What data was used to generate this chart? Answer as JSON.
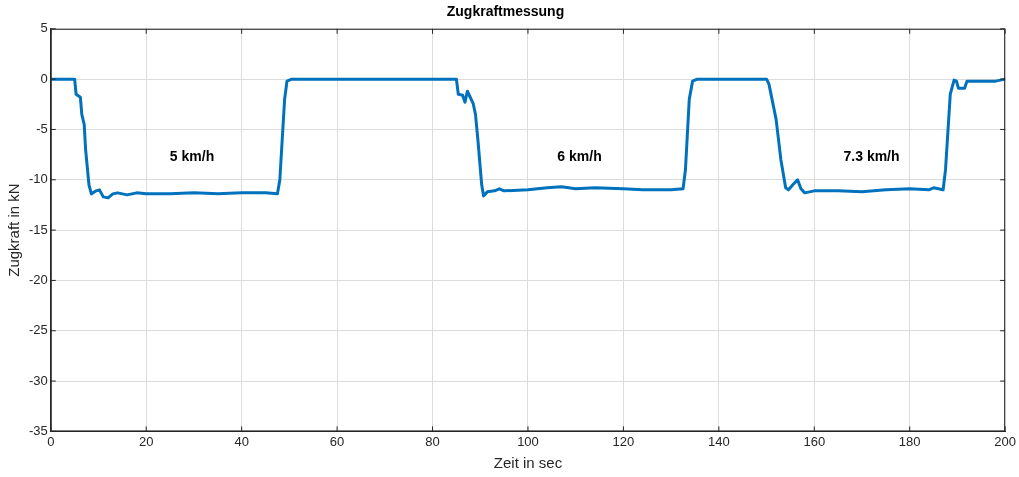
{
  "chart_data": {
    "type": "line",
    "title": "Zugkraftmessung",
    "xlabel": "Zeit in sec",
    "ylabel": "Zugkraft in kN",
    "xlim": [
      0,
      200
    ],
    "xticks": [
      0,
      20,
      40,
      60,
      80,
      100,
      120,
      140,
      160,
      180,
      200
    ],
    "ylim": [
      -35,
      5
    ],
    "yticks": [
      -35,
      -30,
      -25,
      -20,
      -15,
      -10,
      -5,
      0,
      5
    ],
    "grid": true,
    "legend": false,
    "marker": "none",
    "line_style": "solid",
    "annotations": [
      "5 km/h",
      "6 km/h",
      "7.3 km/h"
    ],
    "series": [
      {
        "color": "#0072bd",
        "x": [
          0,
          5,
          5.3,
          6.2,
          6.5,
          7,
          7.3,
          8,
          8.5,
          9.5,
          10.2,
          11,
          12,
          13,
          14,
          16,
          18,
          20,
          25,
          30,
          35,
          40,
          45,
          47.5,
          48,
          49,
          49.5,
          50.5,
          85,
          85.4,
          86.3,
          86.8,
          87.3,
          87.8,
          88.5,
          89,
          89.5,
          90.3,
          90.7,
          91.5,
          93,
          94,
          95,
          100,
          104,
          107,
          110,
          114,
          120,
          124,
          130,
          132.5,
          133,
          133.8,
          134.5,
          135.5,
          150,
          150.5,
          152,
          153,
          154,
          154.6,
          155.5,
          156.5,
          157.2,
          158,
          160,
          165,
          170,
          175,
          180,
          184,
          185,
          187,
          187.5,
          188.5,
          189.3,
          189.8,
          190.2,
          191.5,
          192,
          195,
          198,
          200
        ],
        "values": [
          0,
          0,
          -1.5,
          -1.8,
          -3.5,
          -4.5,
          -7,
          -10.5,
          -11.4,
          -11.1,
          -11.0,
          -11.7,
          -11.8,
          -11.4,
          -11.3,
          -11.5,
          -11.3,
          -11.4,
          -11.4,
          -11.3,
          -11.4,
          -11.3,
          -11.3,
          -11.4,
          -10,
          -2,
          -0.2,
          0,
          0,
          -1.5,
          -1.6,
          -2.3,
          -1.2,
          -1.7,
          -2.4,
          -3.5,
          -6,
          -10.5,
          -11.6,
          -11.2,
          -11.1,
          -10.9,
          -11.1,
          -11.0,
          -10.8,
          -10.7,
          -10.9,
          -10.8,
          -10.9,
          -11.0,
          -11.0,
          -10.9,
          -9,
          -2,
          -0.2,
          0,
          0,
          -0.5,
          -4,
          -8,
          -10.8,
          -11,
          -10.5,
          -10,
          -10.9,
          -11.3,
          -11.1,
          -11.1,
          -11.2,
          -11.0,
          -10.9,
          -11.0,
          -10.8,
          -11.0,
          -9,
          -1.5,
          -0.1,
          -0.2,
          -0.9,
          -0.9,
          -0.2,
          -0.2,
          -0.2,
          0
        ]
      }
    ]
  }
}
